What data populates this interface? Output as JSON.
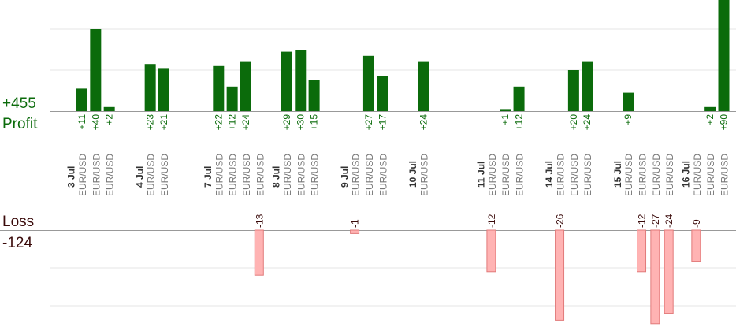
{
  "profit_total": "+455",
  "profit_label": "Profit",
  "loss_label": "Loss",
  "loss_total": "-124",
  "colors": {
    "profit_bar": "#0b6b0b",
    "profit_text": "#0b6b0b",
    "loss_bar": "#ffb3b3",
    "loss_bar_edge": "#e27a7a",
    "loss_text": "#3a0a0a",
    "category_text": "#777777",
    "day_text": "#333333",
    "grid": "#e6e6e6",
    "axis": "#999999"
  },
  "chart_data": {
    "type": "bar",
    "days": [
      "3 Jul",
      "4 Jul",
      "7 Jul",
      "8 Jul",
      "9 Jul",
      "10 Jul",
      "11 Jul",
      "14 Jul",
      "15 Jul",
      "16 Jul"
    ],
    "trades": [
      {
        "day": "3 Jul",
        "symbol": "EUR/USD",
        "profit": 11,
        "profit_label": "+11"
      },
      {
        "day": "3 Jul",
        "symbol": "EUR/USD",
        "profit": 40,
        "profit_label": "+40"
      },
      {
        "day": "3 Jul",
        "symbol": "EUR/USD",
        "profit": 2,
        "profit_label": "+2"
      },
      {
        "day": "4 Jul",
        "symbol": "EUR/USD",
        "profit": 23,
        "profit_label": "+23"
      },
      {
        "day": "4 Jul",
        "symbol": "EUR/USD",
        "profit": 21,
        "profit_label": "+21"
      },
      {
        "day": "7 Jul",
        "symbol": "EUR/USD",
        "profit": 22,
        "profit_label": "+22"
      },
      {
        "day": "7 Jul",
        "symbol": "EUR/USD",
        "profit": 12,
        "profit_label": "+12"
      },
      {
        "day": "7 Jul",
        "symbol": "EUR/USD",
        "profit": 24,
        "profit_label": "+24"
      },
      {
        "day": "7 Jul",
        "symbol": "EUR/USD",
        "loss": 13,
        "loss_label": "-13"
      },
      {
        "day": "8 Jul",
        "symbol": "EUR/USD",
        "profit": 29,
        "profit_label": "+29"
      },
      {
        "day": "8 Jul",
        "symbol": "EUR/USD",
        "profit": 30,
        "profit_label": "+30"
      },
      {
        "day": "8 Jul",
        "symbol": "EUR/USD",
        "profit": 15,
        "profit_label": "+15"
      },
      {
        "day": "9 Jul",
        "symbol": "EUR/USD",
        "loss": 1,
        "loss_label": "-1"
      },
      {
        "day": "9 Jul",
        "symbol": "EUR/USD",
        "profit": 27,
        "profit_label": "+27"
      },
      {
        "day": "9 Jul",
        "symbol": "EUR/USD",
        "profit": 17,
        "profit_label": "+17"
      },
      {
        "day": "10 Jul",
        "symbol": "EUR/USD",
        "profit": 24,
        "profit_label": "+24"
      },
      {
        "day": "11 Jul",
        "symbol": "EUR/USD",
        "loss": 12,
        "loss_label": "-12"
      },
      {
        "day": "11 Jul",
        "symbol": "EUR/USD",
        "profit": 1,
        "profit_label": "+1"
      },
      {
        "day": "11 Jul",
        "symbol": "EUR/USD",
        "profit": 12,
        "profit_label": "+12"
      },
      {
        "day": "14 Jul",
        "symbol": "EUR/USD",
        "loss": 26,
        "loss_label": "-26"
      },
      {
        "day": "14 Jul",
        "symbol": "EUR/USD",
        "profit": 20,
        "profit_label": "+20"
      },
      {
        "day": "14 Jul",
        "symbol": "EUR/USD",
        "profit": 24,
        "profit_label": "+24"
      },
      {
        "day": "15 Jul",
        "symbol": "EUR/USD",
        "profit": 9,
        "profit_label": "+9"
      },
      {
        "day": "15 Jul",
        "symbol": "EUR/USD",
        "loss": 12,
        "loss_label": "-12"
      },
      {
        "day": "15 Jul",
        "symbol": "EUR/USD",
        "loss": 27,
        "loss_label": "-27"
      },
      {
        "day": "15 Jul",
        "symbol": "EUR/USD",
        "loss": 24,
        "loss_label": "-24"
      },
      {
        "day": "16 Jul",
        "symbol": "EUR/USD",
        "loss": 9,
        "loss_label": "-9"
      },
      {
        "day": "16 Jul",
        "symbol": "EUR/USD",
        "profit": 2,
        "profit_label": "+2"
      },
      {
        "day": "16 Jul",
        "symbol": "EUR/USD",
        "profit": 90,
        "profit_label": "+90"
      }
    ],
    "grid": true
  }
}
